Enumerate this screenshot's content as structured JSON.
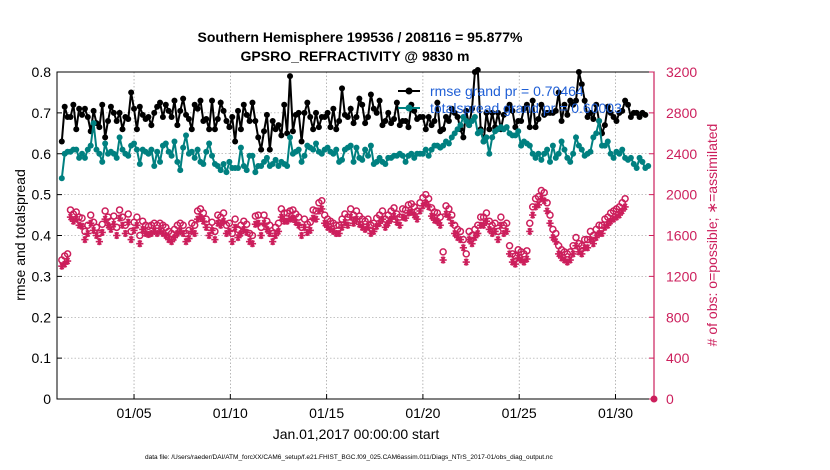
{
  "chart_data": {
    "type": "line",
    "title": "Southern Hemisphere 199536 / 208116 = 95.877%",
    "subtitle": "GPSRO_REFRACTIVITY @ 9830 m",
    "xlabel": "Jan.01,2017 00:00:00 start",
    "ylabel": "rmse and totalspread",
    "ylabel_right": "# of obs: o=possible; ∗=assimilated",
    "footer": "data file: /Users/raeder/DAI/ATM_forcXX/CAM6_setup/f.e21.FHIST_BGC.f09_025.CAM6assim.011/Diags_NTrS_2017-01/obs_diag_output.nc",
    "x_ticks": [
      {
        "x": 5,
        "label": "01/05"
      },
      {
        "x": 10,
        "label": "01/10"
      },
      {
        "x": 15,
        "label": "01/15"
      },
      {
        "x": 20,
        "label": "01/20"
      },
      {
        "x": 25,
        "label": "01/25"
      },
      {
        "x": 30,
        "label": "01/30"
      }
    ],
    "y_ticks": [
      "0",
      "0.1",
      "0.2",
      "0.3",
      "0.4",
      "0.5",
      "0.6",
      "0.7",
      "0.8"
    ],
    "y2_ticks": [
      "0",
      "400",
      "800",
      "1200",
      "1600",
      "2000",
      "2400",
      "2800",
      "3200"
    ],
    "xlim": [
      1,
      32
    ],
    "ylim": [
      0,
      0.8
    ],
    "y2lim": [
      0,
      3200
    ],
    "grid": true,
    "legend_position": "top-right",
    "colors": {
      "rmse": "#000000",
      "spread": "#008080",
      "obs": "#cc1f5c"
    },
    "series": [
      {
        "name": "rmse grand pr = 0.70464",
        "axis": "left",
        "color": "#000000",
        "marker": "circle",
        "values": [
          0.63,
          0.715,
          0.69,
          0.69,
          0.72,
          0.66,
          0.71,
          0.695,
          0.71,
          0.69,
          0.655,
          0.705,
          0.675,
          0.665,
          0.72,
          0.64,
          0.68,
          0.715,
          0.7,
          0.68,
          0.7,
          0.66,
          0.69,
          0.685,
          0.75,
          0.71,
          0.66,
          0.715,
          0.695,
          0.685,
          0.69,
          0.67,
          0.7,
          0.715,
          0.725,
          0.69,
          0.72,
          0.705,
          0.69,
          0.73,
          0.67,
          0.705,
          0.735,
          0.695,
          0.685,
          0.66,
          0.72,
          0.71,
          0.73,
          0.68,
          0.685,
          0.66,
          0.73,
          0.66,
          0.685,
          0.725,
          0.705,
          0.68,
          0.665,
          0.69,
          0.63,
          0.705,
          0.66,
          0.72,
          0.695,
          0.68,
          0.725,
          0.68,
          0.64,
          0.61,
          0.655,
          0.695,
          0.61,
          0.68,
          0.66,
          0.67,
          0.645,
          0.72,
          0.65,
          0.79,
          0.655,
          0.695,
          0.7,
          0.63,
          0.7,
          0.725,
          0.69,
          0.66,
          0.7,
          0.665,
          0.69,
          0.69,
          0.7,
          0.665,
          0.71,
          0.66,
          0.68,
          0.76,
          0.695,
          0.69,
          0.71,
          0.675,
          0.69,
          0.735,
          0.72,
          0.675,
          0.69,
          0.745,
          0.71,
          0.7,
          0.73,
          0.67,
          0.68,
          0.7,
          0.675,
          0.685,
          0.725,
          0.67,
          0.68,
          0.68,
          0.665,
          0.72,
          0.705,
          0.685,
          0.69,
          0.69,
          0.66,
          0.69,
          0.67,
          0.68,
          0.725,
          0.655,
          0.66,
          0.69,
          0.68,
          0.71,
          0.7,
          0.69,
          0.66,
          0.64,
          0.705,
          0.67,
          0.71,
          0.8,
          0.805,
          0.66,
          0.63,
          0.7,
          0.66,
          0.7,
          0.665,
          0.7,
          0.66,
          0.695,
          0.71,
          0.72,
          0.705,
          0.665,
          0.68,
          0.68,
          0.71,
          0.72,
          0.665,
          0.73,
          0.665,
          0.685,
          0.72,
          0.695,
          0.7,
          0.7,
          0.7,
          0.705,
          0.75,
          0.68,
          0.72,
          0.695,
          0.73,
          0.72,
          0.73,
          0.8,
          0.77,
          0.73,
          0.69,
          0.7,
          0.685,
          0.72,
          0.68,
          0.65,
          0.67,
          0.715,
          0.7,
          0.69,
          0.68,
          0.7,
          0.705,
          0.73,
          0.72,
          0.69,
          0.7,
          0.7,
          0.69,
          0.7,
          0.695
        ]
      },
      {
        "name": "totalspread grand pr = 0.60003",
        "axis": "left",
        "color": "#008080",
        "marker": "circle",
        "values": [
          0.54,
          0.6,
          0.605,
          0.605,
          0.61,
          0.61,
          0.59,
          0.6,
          0.59,
          0.61,
          0.62,
          0.675,
          0.61,
          0.6,
          0.58,
          0.625,
          0.6,
          0.605,
          0.6,
          0.59,
          0.64,
          0.61,
          0.6,
          0.595,
          0.62,
          0.625,
          0.61,
          0.575,
          0.61,
          0.605,
          0.6,
          0.61,
          0.57,
          0.605,
          0.58,
          0.62,
          0.625,
          0.605,
          0.595,
          0.63,
          0.58,
          0.56,
          0.615,
          0.645,
          0.6,
          0.605,
          0.59,
          0.61,
          0.58,
          0.575,
          0.605,
          0.625,
          0.595,
          0.575,
          0.57,
          0.56,
          0.575,
          0.555,
          0.58,
          0.565,
          0.565,
          0.565,
          0.615,
          0.57,
          0.56,
          0.595,
          0.595,
          0.555,
          0.57,
          0.57,
          0.58,
          0.59,
          0.57,
          0.575,
          0.585,
          0.57,
          0.58,
          0.575,
          0.57,
          0.64,
          0.6,
          0.605,
          0.61,
          0.58,
          0.595,
          0.62,
          0.615,
          0.61,
          0.625,
          0.605,
          0.6,
          0.61,
          0.615,
          0.605,
          0.6,
          0.61,
          0.58,
          0.585,
          0.61,
          0.615,
          0.62,
          0.58,
          0.615,
          0.59,
          0.585,
          0.61,
          0.595,
          0.62,
          0.575,
          0.58,
          0.59,
          0.58,
          0.575,
          0.59,
          0.59,
          0.595,
          0.595,
          0.6,
          0.595,
          0.58,
          0.595,
          0.6,
          0.59,
          0.6,
          0.6,
          0.6,
          0.61,
          0.595,
          0.61,
          0.62,
          0.62,
          0.615,
          0.62,
          0.63,
          0.625,
          0.64,
          0.65,
          0.66,
          0.67,
          0.69,
          0.68,
          0.67,
          0.68,
          0.69,
          0.65,
          0.655,
          0.63,
          0.64,
          0.6,
          0.64,
          0.655,
          0.66,
          0.665,
          0.66,
          0.665,
          0.65,
          0.645,
          0.645,
          0.655,
          0.62,
          0.63,
          0.625,
          0.62,
          0.6,
          0.59,
          0.6,
          0.585,
          0.6,
          0.61,
          0.58,
          0.62,
          0.59,
          0.6,
          0.63,
          0.61,
          0.59,
          0.58,
          0.6,
          0.64,
          0.62,
          0.61,
          0.595,
          0.6,
          0.605,
          0.64,
          0.65,
          0.68,
          0.62,
          0.62,
          0.63,
          0.6,
          0.59,
          0.605,
          0.6,
          0.61,
          0.59,
          0.585,
          0.59,
          0.575,
          0.565,
          0.59,
          0.58,
          0.565,
          0.57
        ]
      },
      {
        "name": "possible",
        "axis": "right",
        "color": "#cc1f5c",
        "marker": "open-circle",
        "values": [
          1360,
          1400,
          1420,
          1850,
          1810,
          1830,
          1780,
          1770,
          1640,
          1700,
          1800,
          1730,
          1680,
          1620,
          1710,
          1840,
          1780,
          1740,
          1790,
          1680,
          1850,
          1780,
          1700,
          1810,
          1640,
          1730,
          1780,
          1600,
          1740,
          1700,
          1690,
          1700,
          1720,
          1700,
          1720,
          1700,
          1680,
          1640,
          1620,
          1660,
          1700,
          1720,
          1700,
          1620,
          1650,
          1720,
          1700,
          1840,
          1860,
          1820,
          1760,
          1680,
          1730,
          1640,
          1800,
          1780,
          1820,
          1700,
          1720,
          1620,
          1760,
          1660,
          1700,
          1740,
          1710,
          1620,
          1600,
          1790,
          1800,
          1680,
          1800,
          1740,
          1700,
          1620,
          1680,
          1720,
          1860,
          1820,
          1820,
          1840,
          1850,
          1810,
          1780,
          1680,
          1760,
          1710,
          1730,
          1850,
          1840,
          1920,
          1940,
          1800,
          1760,
          1740,
          1720,
          1700,
          1700,
          1760,
          1810,
          1780,
          1860,
          1800,
          1840,
          1790,
          1760,
          1740,
          1760,
          1700,
          1720,
          1770,
          1800,
          1840,
          1760,
          1800,
          1840,
          1870,
          1810,
          1780,
          1860,
          1850,
          1900,
          1910,
          1880,
          1840,
          1920,
          1970,
          2000,
          1960,
          1870,
          1830,
          1820,
          1780,
          1440,
          1890,
          1860,
          1800,
          1700,
          1660,
          1640,
          1560,
          1420,
          1640,
          1600,
          1660,
          1700,
          1780,
          1780,
          1820,
          1740,
          1700,
          1720,
          1640,
          1780,
          1700,
          1720,
          1500,
          1420,
          1400,
          1460,
          1440,
          1420,
          1450,
          1720,
          1880,
          1960,
          1980,
          2040,
          2020,
          1920,
          1800,
          1660,
          1620,
          1500,
          1460,
          1440,
          1420,
          1440,
          1500,
          1580,
          1520,
          1500,
          1560,
          1560,
          1640,
          1600,
          1660,
          1700,
          1700,
          1760,
          1780,
          1820,
          1840,
          1860,
          1880,
          1920,
          1960
        ]
      },
      {
        "name": "assimilated",
        "axis": "right",
        "color": "#cc1f5c",
        "marker": "asterisk",
        "values": [
          1300,
          1320,
          1350,
          1780,
          1740,
          1760,
          1700,
          1690,
          1560,
          1620,
          1720,
          1650,
          1600,
          1540,
          1630,
          1760,
          1700,
          1660,
          1710,
          1600,
          1770,
          1700,
          1620,
          1730,
          1560,
          1650,
          1700,
          1520,
          1660,
          1620,
          1610,
          1620,
          1640,
          1620,
          1640,
          1620,
          1600,
          1560,
          1540,
          1580,
          1620,
          1640,
          1620,
          1540,
          1570,
          1640,
          1620,
          1760,
          1780,
          1740,
          1680,
          1600,
          1650,
          1560,
          1720,
          1700,
          1740,
          1620,
          1640,
          1540,
          1680,
          1580,
          1620,
          1660,
          1630,
          1540,
          1520,
          1710,
          1720,
          1600,
          1720,
          1660,
          1620,
          1540,
          1600,
          1640,
          1780,
          1740,
          1740,
          1760,
          1770,
          1730,
          1700,
          1600,
          1680,
          1630,
          1650,
          1770,
          1760,
          1840,
          1860,
          1720,
          1680,
          1660,
          1640,
          1620,
          1620,
          1680,
          1730,
          1700,
          1780,
          1720,
          1760,
          1710,
          1680,
          1660,
          1680,
          1620,
          1640,
          1690,
          1720,
          1760,
          1680,
          1720,
          1760,
          1790,
          1730,
          1700,
          1780,
          1770,
          1820,
          1830,
          1800,
          1760,
          1840,
          1890,
          1920,
          1880,
          1790,
          1750,
          1740,
          1700,
          1360,
          1810,
          1780,
          1720,
          1620,
          1580,
          1560,
          1480,
          1340,
          1560,
          1520,
          1580,
          1620,
          1700,
          1700,
          1740,
          1660,
          1620,
          1640,
          1560,
          1700,
          1620,
          1640,
          1420,
          1340,
          1320,
          1380,
          1360,
          1340,
          1370,
          1640,
          1800,
          1880,
          1900,
          1960,
          1940,
          1840,
          1720,
          1580,
          1540,
          1420,
          1380,
          1360,
          1340,
          1360,
          1420,
          1500,
          1440,
          1420,
          1480,
          1480,
          1560,
          1520,
          1580,
          1620,
          1620,
          1680,
          1700,
          1740,
          1760,
          1780,
          1800,
          1840,
          1880
        ]
      }
    ]
  }
}
